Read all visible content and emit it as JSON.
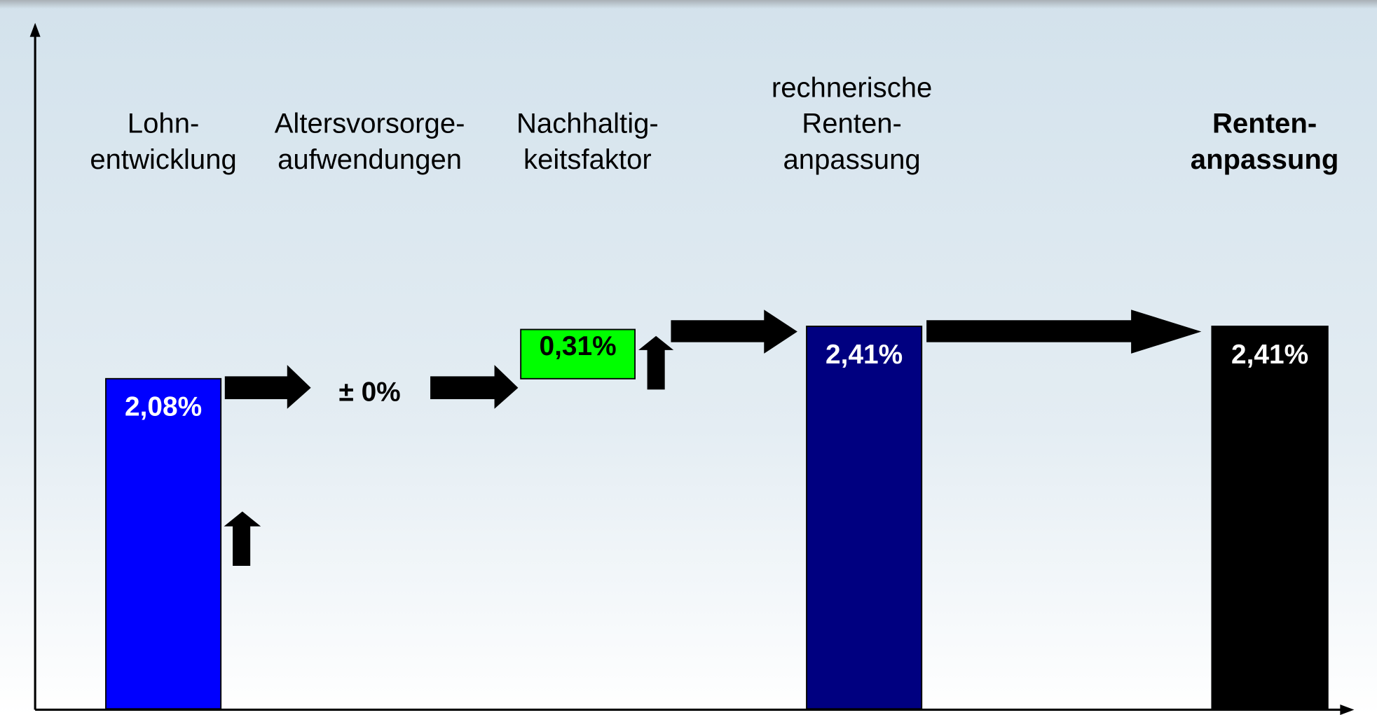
{
  "chart_data": {
    "type": "waterfall",
    "categories": [
      [
        "Lohn-",
        "entwicklung"
      ],
      [
        "Altersvorsorge-",
        "aufwendungen"
      ],
      [
        "Nachhaltig-",
        "keitsfaktor"
      ],
      [
        "rechnerische",
        "Renten-",
        "anpassung"
      ],
      [
        "Renten-",
        "anpassung"
      ]
    ],
    "values": [
      2.08,
      0,
      0.31,
      2.41,
      2.41
    ],
    "value_labels": [
      "2,08%",
      "± 0%",
      "0,31%",
      "2,41%",
      "2,41%"
    ],
    "measure": [
      "absolute",
      "relative",
      "relative",
      "total",
      "total"
    ],
    "colors": [
      "#0000ff",
      "#0000ff",
      "#00ff00",
      "#000080",
      "#000000"
    ],
    "ylim": [
      0,
      4.3
    ]
  }
}
